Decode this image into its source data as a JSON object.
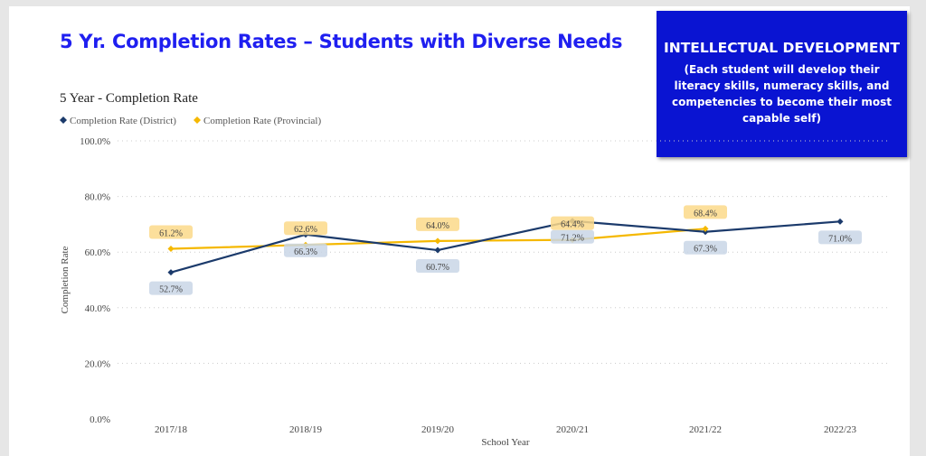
{
  "header": {
    "title": "5 Yr. Completion Rates – Students with Diverse Needs"
  },
  "callout": {
    "heading": "INTELLECTUAL DEVELOPMENT",
    "body": "(Each student will develop their literacy skills, numeracy skills, and competencies to become their most capable self)",
    "background": "#0a14d2"
  },
  "chart_data": {
    "type": "line",
    "title": "5 Year - Completion Rate",
    "xlabel": "School Year",
    "ylabel": "Completion Rate",
    "categories": [
      "2017/18",
      "2018/19",
      "2019/20",
      "2020/21",
      "2021/22",
      "2022/23"
    ],
    "ylim": [
      0,
      100
    ],
    "yticks": [
      "0.0%",
      "20.0%",
      "40.0%",
      "60.0%",
      "80.0%",
      "100.0%"
    ],
    "grid": true,
    "legend": "top-left",
    "series": [
      {
        "name": "Completion Rate (District)",
        "color": "#1b3a6b",
        "label_bg": "#c9d6e6",
        "values": [
          52.7,
          66.3,
          60.7,
          71.2,
          67.3,
          71.0
        ],
        "labels": [
          "52.7%",
          "66.3%",
          "60.7%",
          "71.2%",
          "67.3%",
          "71.0%"
        ]
      },
      {
        "name": "Completion Rate (Provincial)",
        "color": "#f5b800",
        "label_bg": "#fbd98a",
        "values": [
          61.2,
          62.6,
          64.0,
          64.4,
          68.4,
          null
        ],
        "labels": [
          "61.2%",
          "62.6%",
          "64.0%",
          "64.4%",
          "68.4%",
          null
        ]
      }
    ]
  }
}
